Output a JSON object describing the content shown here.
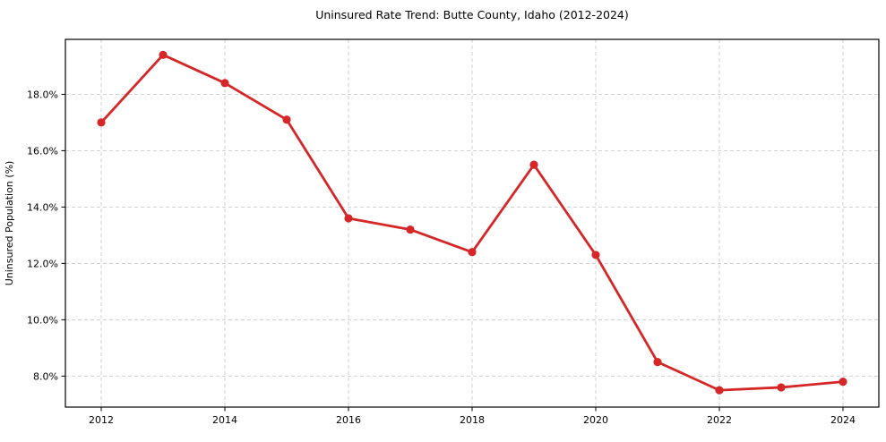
{
  "chart_data": {
    "type": "line",
    "title": "Uninsured Rate Trend: Butte County, Idaho (2012-2024)",
    "xlabel": "",
    "ylabel": "Uninsured Population (%)",
    "x": [
      2012,
      2013,
      2014,
      2015,
      2016,
      2017,
      2018,
      2019,
      2020,
      2021,
      2022,
      2023,
      2024
    ],
    "series": [
      {
        "name": "Uninsured rate",
        "values": [
          17.0,
          19.4,
          18.4,
          17.1,
          13.6,
          13.2,
          12.4,
          15.5,
          12.3,
          8.5,
          7.5,
          7.6,
          7.8
        ]
      }
    ],
    "xticks": [
      2012,
      2014,
      2016,
      2018,
      2020,
      2022,
      2024
    ],
    "yticks": [
      8.0,
      10.0,
      12.0,
      14.0,
      16.0,
      18.0
    ],
    "ytick_suffix": "%",
    "xlim": [
      2011.42,
      2024.58
    ],
    "ylim": [
      6.9,
      19.95
    ],
    "grid": true,
    "grid_style": "dashed",
    "legend_position": "none",
    "line_color": "#d62728",
    "marker": "circle",
    "marker_radius": 4.6,
    "grid_color": "#cccccc",
    "axis_color": "#000000",
    "background": "#ffffff"
  }
}
